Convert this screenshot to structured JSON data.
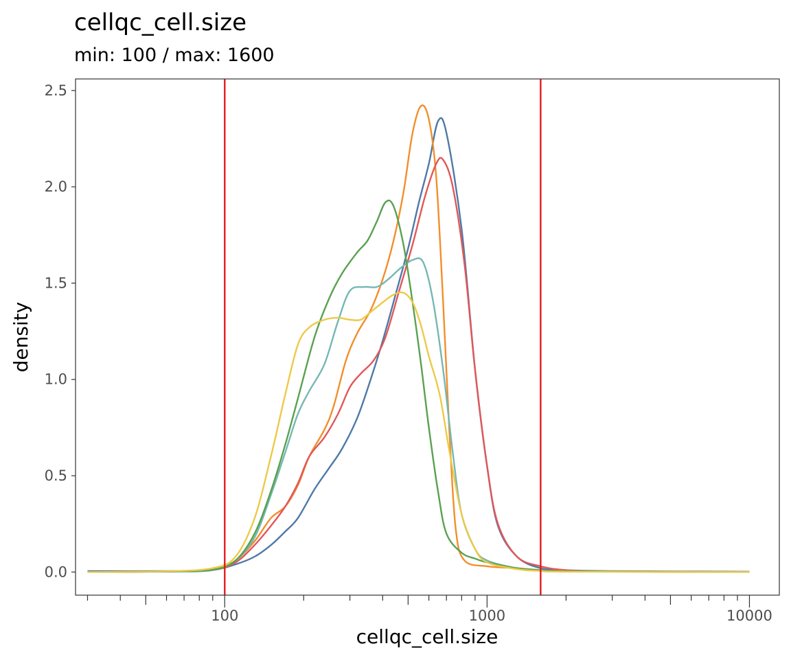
{
  "chart_data": {
    "type": "line",
    "title": "cellqc_cell.size",
    "subtitle": "min: 100 / max: 1600",
    "xlabel": "cellqc_cell.size",
    "ylabel": "density",
    "x_scale": "log10",
    "xlim": [
      27,
      13000
    ],
    "ylim": [
      -0.12,
      2.56
    ],
    "x_ticks": [
      {
        "value": 100,
        "label": "100"
      },
      {
        "value": 1000,
        "label": "1000"
      },
      {
        "value": 10000,
        "label": "10000"
      }
    ],
    "x_minor_ticks": [
      30,
      40,
      50,
      60,
      70,
      80,
      90,
      200,
      300,
      400,
      500,
      600,
      700,
      800,
      900,
      2000,
      3000,
      4000,
      5000,
      6000,
      7000,
      8000,
      9000
    ],
    "y_ticks": [
      {
        "value": 0.0,
        "label": "0.0"
      },
      {
        "value": 0.5,
        "label": "0.5"
      },
      {
        "value": 1.0,
        "label": "1.0"
      },
      {
        "value": 1.5,
        "label": "1.5"
      },
      {
        "value": 2.0,
        "label": "2.0"
      },
      {
        "value": 2.5,
        "label": "2.5"
      }
    ],
    "thresholds": {
      "values": [
        100,
        1600
      ],
      "color": "#e41a1c"
    },
    "grid": false,
    "legend": "none",
    "series": [
      {
        "color": "#4e79a7",
        "points": [
          [
            30,
            0.005
          ],
          [
            60,
            0.005
          ],
          [
            90,
            0.012
          ],
          [
            110,
            0.04
          ],
          [
            130,
            0.08
          ],
          [
            150,
            0.14
          ],
          [
            170,
            0.21
          ],
          [
            190,
            0.28
          ],
          [
            220,
            0.43
          ],
          [
            250,
            0.54
          ],
          [
            280,
            0.64
          ],
          [
            320,
            0.8
          ],
          [
            360,
            1.0
          ],
          [
            400,
            1.2
          ],
          [
            450,
            1.45
          ],
          [
            500,
            1.68
          ],
          [
            550,
            1.92
          ],
          [
            600,
            2.12
          ],
          [
            650,
            2.34
          ],
          [
            700,
            2.28
          ],
          [
            800,
            1.78
          ],
          [
            900,
            1.05
          ],
          [
            1000,
            0.55
          ],
          [
            1100,
            0.24
          ],
          [
            1300,
            0.08
          ],
          [
            1600,
            0.02
          ],
          [
            2000,
            0.01
          ],
          [
            3000,
            0.005
          ],
          [
            10000,
            0.002
          ]
        ]
      },
      {
        "color": "#f28e2b",
        "points": [
          [
            30,
            0.0
          ],
          [
            60,
            0.003
          ],
          [
            90,
            0.012
          ],
          [
            110,
            0.06
          ],
          [
            130,
            0.16
          ],
          [
            150,
            0.28
          ],
          [
            170,
            0.34
          ],
          [
            190,
            0.45
          ],
          [
            210,
            0.6
          ],
          [
            240,
            0.74
          ],
          [
            260,
            0.86
          ],
          [
            290,
            1.1
          ],
          [
            320,
            1.24
          ],
          [
            360,
            1.36
          ],
          [
            400,
            1.52
          ],
          [
            440,
            1.72
          ],
          [
            480,
            1.97
          ],
          [
            520,
            2.28
          ],
          [
            560,
            2.42
          ],
          [
            600,
            2.35
          ],
          [
            640,
            2.05
          ],
          [
            680,
            1.4
          ],
          [
            720,
            0.7
          ],
          [
            760,
            0.22
          ],
          [
            820,
            0.06
          ],
          [
            1000,
            0.03
          ],
          [
            1300,
            0.02
          ],
          [
            1600,
            0.01
          ],
          [
            2000,
            0.003
          ],
          [
            10000,
            0.0
          ]
        ]
      },
      {
        "color": "#e15759",
        "points": [
          [
            30,
            0.0
          ],
          [
            60,
            0.003
          ],
          [
            90,
            0.01
          ],
          [
            110,
            0.05
          ],
          [
            130,
            0.14
          ],
          [
            150,
            0.24
          ],
          [
            170,
            0.34
          ],
          [
            190,
            0.46
          ],
          [
            210,
            0.6
          ],
          [
            240,
            0.7
          ],
          [
            270,
            0.82
          ],
          [
            300,
            0.96
          ],
          [
            330,
            1.03
          ],
          [
            370,
            1.1
          ],
          [
            410,
            1.22
          ],
          [
            460,
            1.45
          ],
          [
            520,
            1.7
          ],
          [
            580,
            1.95
          ],
          [
            640,
            2.12
          ],
          [
            680,
            2.14
          ],
          [
            740,
            2.0
          ],
          [
            820,
            1.6
          ],
          [
            900,
            1.05
          ],
          [
            1000,
            0.55
          ],
          [
            1100,
            0.25
          ],
          [
            1300,
            0.08
          ],
          [
            1600,
            0.03
          ],
          [
            2000,
            0.01
          ],
          [
            3000,
            0.003
          ],
          [
            10000,
            0.0
          ]
        ]
      },
      {
        "color": "#76b7b2",
        "points": [
          [
            30,
            0.0
          ],
          [
            60,
            0.002
          ],
          [
            90,
            0.01
          ],
          [
            110,
            0.06
          ],
          [
            130,
            0.18
          ],
          [
            150,
            0.4
          ],
          [
            170,
            0.62
          ],
          [
            190,
            0.82
          ],
          [
            210,
            0.94
          ],
          [
            240,
            1.08
          ],
          [
            270,
            1.3
          ],
          [
            300,
            1.46
          ],
          [
            340,
            1.48
          ],
          [
            380,
            1.48
          ],
          [
            420,
            1.52
          ],
          [
            470,
            1.58
          ],
          [
            520,
            1.62
          ],
          [
            570,
            1.61
          ],
          [
            620,
            1.42
          ],
          [
            680,
            1.05
          ],
          [
            740,
            0.62
          ],
          [
            800,
            0.3
          ],
          [
            900,
            0.12
          ],
          [
            1000,
            0.06
          ],
          [
            1300,
            0.02
          ],
          [
            1600,
            0.01
          ],
          [
            2000,
            0.005
          ],
          [
            10000,
            0.0
          ]
        ]
      },
      {
        "color": "#59a14f",
        "points": [
          [
            30,
            0.0
          ],
          [
            60,
            0.003
          ],
          [
            90,
            0.012
          ],
          [
            110,
            0.06
          ],
          [
            130,
            0.2
          ],
          [
            150,
            0.42
          ],
          [
            170,
            0.66
          ],
          [
            190,
            0.9
          ],
          [
            220,
            1.22
          ],
          [
            250,
            1.42
          ],
          [
            280,
            1.55
          ],
          [
            320,
            1.66
          ],
          [
            350,
            1.72
          ],
          [
            380,
            1.82
          ],
          [
            410,
            1.92
          ],
          [
            440,
            1.9
          ],
          [
            480,
            1.7
          ],
          [
            520,
            1.4
          ],
          [
            560,
            1.08
          ],
          [
            600,
            0.75
          ],
          [
            650,
            0.42
          ],
          [
            700,
            0.2
          ],
          [
            800,
            0.1
          ],
          [
            900,
            0.07
          ],
          [
            1000,
            0.05
          ],
          [
            1300,
            0.02
          ],
          [
            1600,
            0.01
          ],
          [
            2000,
            0.004
          ],
          [
            10000,
            0.0
          ]
        ]
      },
      {
        "color": "#edc948",
        "points": [
          [
            30,
            0.0
          ],
          [
            60,
            0.004
          ],
          [
            90,
            0.02
          ],
          [
            110,
            0.08
          ],
          [
            130,
            0.28
          ],
          [
            150,
            0.6
          ],
          [
            170,
            0.92
          ],
          [
            190,
            1.18
          ],
          [
            210,
            1.27
          ],
          [
            240,
            1.31
          ],
          [
            270,
            1.32
          ],
          [
            300,
            1.31
          ],
          [
            330,
            1.31
          ],
          [
            360,
            1.35
          ],
          [
            400,
            1.4
          ],
          [
            440,
            1.44
          ],
          [
            480,
            1.45
          ],
          [
            520,
            1.4
          ],
          [
            560,
            1.28
          ],
          [
            600,
            1.12
          ],
          [
            660,
            0.92
          ],
          [
            720,
            0.62
          ],
          [
            800,
            0.3
          ],
          [
            900,
            0.12
          ],
          [
            1000,
            0.05
          ],
          [
            1300,
            0.015
          ],
          [
            1600,
            0.006
          ],
          [
            2000,
            0.002
          ],
          [
            10000,
            0.0
          ]
        ]
      }
    ]
  }
}
